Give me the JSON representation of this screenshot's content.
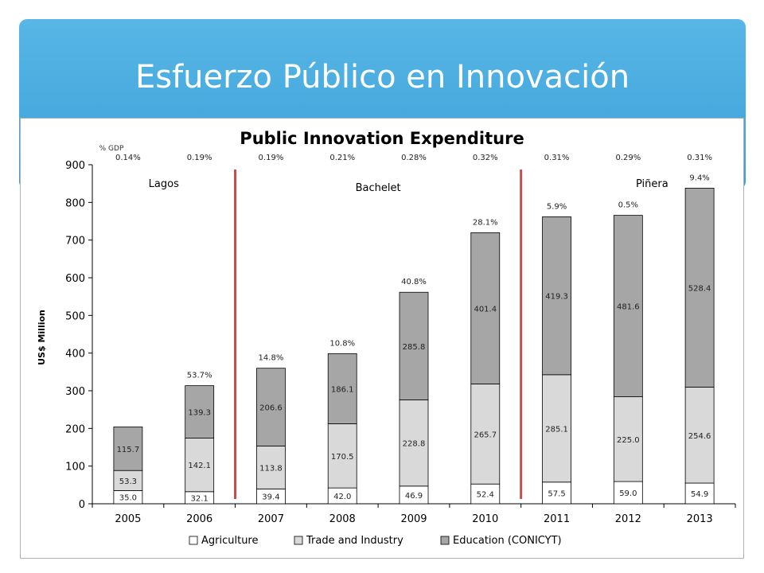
{
  "slide": {
    "title": "Esfuerzo Público en Innovación"
  },
  "colors": {
    "banner": "#45a9df",
    "agriculture": "#ffffff",
    "trade": "#d9d9d9",
    "education": "#a6a6a6",
    "divider": "#c0504d"
  },
  "chart_data": {
    "type": "bar",
    "stacked": true,
    "title": "Public Innovation Expenditure",
    "ylabel": "US$ Million",
    "xlabel": "",
    "ylim": [
      0,
      900
    ],
    "yticks": [
      0,
      100,
      200,
      300,
      400,
      500,
      600,
      700,
      800,
      900
    ],
    "grid": false,
    "legend_position": "bottom",
    "categories": [
      "2005",
      "2006",
      "2007",
      "2008",
      "2009",
      "2010",
      "2011",
      "2012",
      "2013"
    ],
    "series": [
      {
        "name": "Agriculture",
        "color": "#ffffff",
        "values": [
          35.0,
          32.1,
          39.4,
          42.0,
          46.9,
          52.4,
          57.5,
          59.0,
          54.9
        ],
        "labels": [
          "35.0",
          "32.1",
          "39.4",
          "42.0",
          "46.9",
          "52.4",
          "57.5",
          "59.0",
          "54.9"
        ]
      },
      {
        "name": "Trade and Industry",
        "color": "#d9d9d9",
        "values": [
          53.3,
          142.1,
          113.8,
          170.5,
          228.8,
          265.7,
          285.1,
          225.0,
          254.6
        ],
        "labels": [
          "53.3",
          "142.1",
          "113.8",
          "170.5",
          "228.8",
          "265.7",
          "285.1",
          "225.0",
          "254.6"
        ]
      },
      {
        "name": "Education (CONICYT)",
        "color": "#a6a6a6",
        "values": [
          115.7,
          139.3,
          206.6,
          186.1,
          285.8,
          401.4,
          419.3,
          481.6,
          528.4
        ],
        "labels": [
          "115.7",
          "139.3",
          "206.6",
          "186.1",
          "285.8",
          "401.4",
          "419.3",
          "481.6",
          "528.4"
        ]
      }
    ],
    "gdp_header": "% GDP",
    "gdp_share": [
      "0.14%",
      "0.19%",
      "0.19%",
      "0.21%",
      "0.28%",
      "0.32%",
      "0.31%",
      "0.29%",
      "0.31%"
    ],
    "growth": [
      "",
      "53.7%",
      "14.8%",
      "10.8%",
      "40.8%",
      "28.1%",
      "5.9%",
      "0.5%",
      "9.4%"
    ],
    "periods": [
      {
        "label": "Lagos",
        "start": "2005",
        "end": "2006"
      },
      {
        "label": "Bachelet",
        "start": "2007",
        "end": "2010"
      },
      {
        "label": "Piñera",
        "start": "2011",
        "end": "2013"
      }
    ],
    "dividers_after": [
      "2006",
      "2010"
    ]
  }
}
